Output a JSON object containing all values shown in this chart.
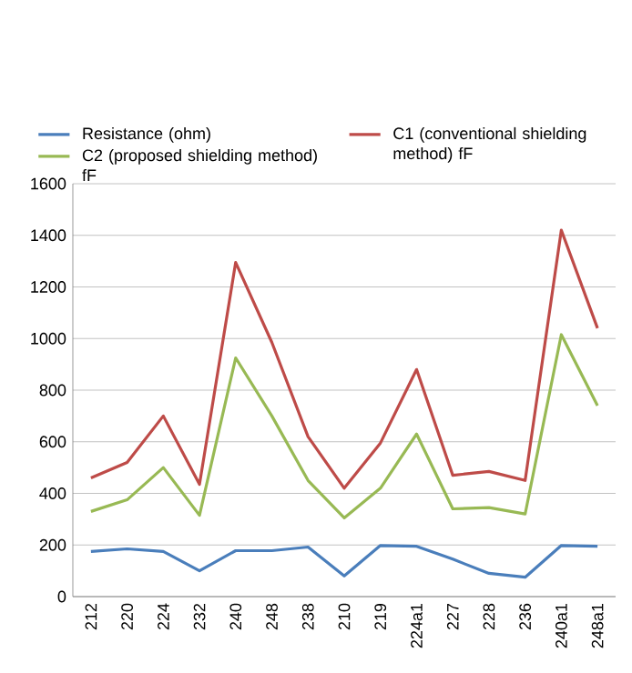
{
  "chart_data": {
    "type": "line",
    "categories": [
      "212",
      "220",
      "224",
      "232",
      "240",
      "248",
      "238",
      "210",
      "219",
      "224a1",
      "227",
      "228",
      "236",
      "240a1",
      "248a1"
    ],
    "series": [
      {
        "name": "Resistance (ohm)",
        "color": "#4a7ebb",
        "values": [
          175,
          185,
          175,
          100,
          178,
          178,
          192,
          80,
          198,
          195,
          145,
          90,
          75,
          198,
          195
        ]
      },
      {
        "name": "C1 (conventional shielding method) fF",
        "color": "#be4b48",
        "values": [
          460,
          520,
          700,
          435,
          1295,
          985,
          620,
          420,
          595,
          880,
          470,
          485,
          450,
          1420,
          1040
        ]
      },
      {
        "name": "C2 (proposed shielding method) fF",
        "color": "#98b954",
        "values": [
          330,
          375,
          500,
          315,
          925,
          700,
          450,
          305,
          420,
          630,
          340,
          345,
          320,
          1015,
          740
        ]
      }
    ],
    "ylim": [
      0,
      1600
    ],
    "yticks": [
      0,
      200,
      400,
      600,
      800,
      1000,
      1200,
      1400,
      1600
    ],
    "grid": "y",
    "legend": "top",
    "marker": "none",
    "line_style": "solid"
  }
}
